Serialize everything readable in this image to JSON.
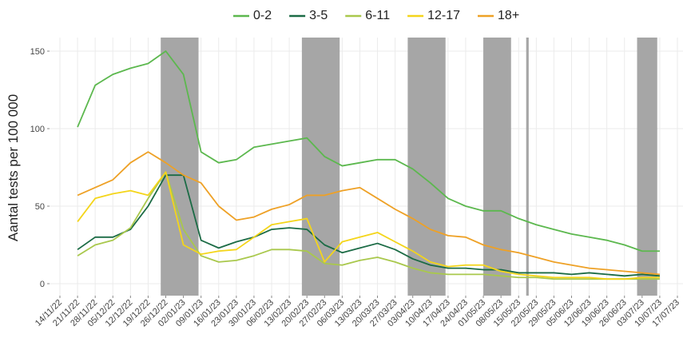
{
  "chart_data": {
    "type": "line",
    "y_label": "Aantal tests per 100 000",
    "x": [
      "21/11/22",
      "28/11/22",
      "05/12/22",
      "12/12/22",
      "19/12/22",
      "26/12/22",
      "02/01/23",
      "09/01/23",
      "16/01/23",
      "23/01/23",
      "30/01/23",
      "06/02/23",
      "13/02/23",
      "20/02/23",
      "27/02/23",
      "06/03/23",
      "13/03/23",
      "20/03/23",
      "27/03/23",
      "03/04/23",
      "10/04/23",
      "17/04/23",
      "24/04/23",
      "01/05/23",
      "08/05/23",
      "15/05/23",
      "22/05/23",
      "29/05/23",
      "05/06/23",
      "12/06/23",
      "19/06/23",
      "26/06/23",
      "03/07/23",
      "10/07/23"
    ],
    "series": [
      {
        "name": "0-2",
        "color": "#5cb84e",
        "values": [
          101,
          128,
          135,
          139,
          142,
          150,
          135,
          85,
          78,
          80,
          88,
          90,
          92,
          94,
          82,
          76,
          78,
          80,
          80,
          74,
          65,
          55,
          50,
          47,
          47,
          42,
          38,
          35,
          32,
          30,
          28,
          25,
          21,
          21
        ]
      },
      {
        "name": "3-5",
        "color": "#1b6b45",
        "values": [
          22,
          30,
          30,
          35,
          50,
          70,
          70,
          28,
          23,
          27,
          30,
          35,
          36,
          35,
          25,
          20,
          23,
          26,
          22,
          16,
          12,
          10,
          10,
          9,
          9,
          7,
          7,
          7,
          6,
          7,
          6,
          5,
          6,
          5
        ]
      },
      {
        "name": "6-11",
        "color": "#a9c84c",
        "values": [
          18,
          25,
          28,
          36,
          55,
          72,
          35,
          18,
          14,
          15,
          18,
          22,
          22,
          21,
          13,
          12,
          15,
          17,
          14,
          10,
          7,
          6,
          6,
          6,
          5,
          4,
          4,
          3,
          3,
          3,
          3,
          3,
          3,
          3
        ]
      },
      {
        "name": "12-17",
        "color": "#f4d51a",
        "values": [
          40,
          55,
          58,
          60,
          57,
          72,
          25,
          19,
          21,
          22,
          30,
          38,
          40,
          42,
          14,
          27,
          30,
          33,
          27,
          21,
          14,
          11,
          12,
          12,
          8,
          6,
          5,
          4,
          4,
          4,
          3,
          3,
          4,
          4
        ]
      },
      {
        "name": "18+",
        "color": "#eea126",
        "values": [
          57,
          62,
          67,
          78,
          85,
          78,
          70,
          65,
          50,
          41,
          43,
          48,
          51,
          57,
          57,
          60,
          62,
          55,
          48,
          42,
          35,
          31,
          30,
          25,
          22,
          20,
          17,
          14,
          12,
          10,
          9,
          8,
          7,
          6
        ]
      }
    ],
    "xlim": [
      "14/11/22",
      "17/07/23"
    ],
    "xticks": [
      "14/11/22",
      "21/11/22",
      "28/11/22",
      "05/12/22",
      "12/12/22",
      "19/12/22",
      "26/12/22",
      "02/01/23",
      "09/01/23",
      "16/01/23",
      "23/01/23",
      "30/01/23",
      "06/02/23",
      "13/02/23",
      "20/02/23",
      "27/02/23",
      "06/03/23",
      "13/03/23",
      "20/03/23",
      "27/03/23",
      "03/04/23",
      "10/04/23",
      "17/04/23",
      "24/04/23",
      "01/05/23",
      "08/05/23",
      "15/05/23",
      "22/05/23",
      "29/05/23",
      "05/06/23",
      "12/06/23",
      "19/06/23",
      "26/06/23",
      "03/07/23",
      "10/07/23",
      "17/07/23"
    ],
    "ylim": [
      0,
      150
    ],
    "yticks": [
      0,
      50,
      100,
      150
    ],
    "grid": true,
    "legend_position": "top",
    "shaded_periods": [
      [
        "24/12/22",
        "08/01/23"
      ],
      [
        "18/02/23",
        "05/03/23"
      ],
      [
        "01/04/23",
        "16/04/23"
      ],
      [
        "01/05/23",
        "12/05/23"
      ],
      [
        "18/05/23",
        "19/05/23"
      ],
      [
        "01/07/23",
        "09/07/23"
      ]
    ],
    "shade_color": "#a6a6a6"
  }
}
